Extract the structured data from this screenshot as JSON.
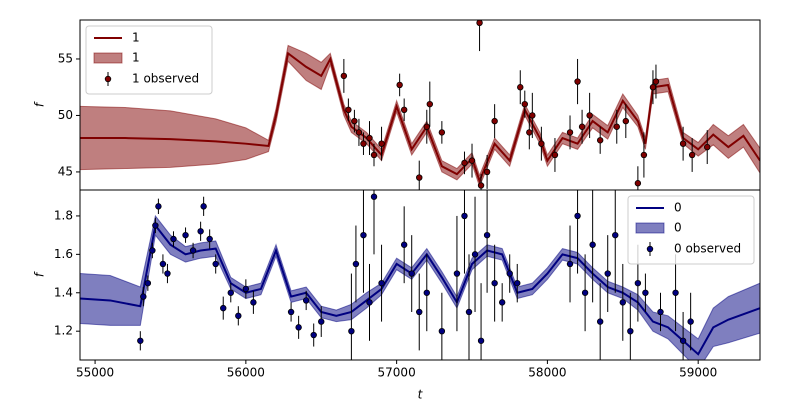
{
  "chart_data": [
    {
      "type": "line",
      "xlabel": "t",
      "ylabel": "f",
      "legend": "upper left",
      "xlim": [
        54900,
        59410
      ],
      "ylim": [
        43.4,
        58.45
      ],
      "yticks": [
        45,
        50,
        55
      ],
      "line": {
        "name": "1",
        "color": "#800000",
        "x": [
          54900,
          55200,
          55500,
          55800,
          56000,
          56150,
          56200,
          56280,
          56400,
          56500,
          56560,
          56650,
          56700,
          56800,
          56900,
          57000,
          57100,
          57200,
          57300,
          57400,
          57500,
          57550,
          57650,
          57750,
          57850,
          57950,
          58000,
          58100,
          58200,
          58300,
          58400,
          58500,
          58600,
          58650,
          58700,
          58800,
          58900,
          59000,
          59100,
          59200,
          59300,
          59410
        ],
        "values": [
          48.0,
          48.0,
          47.9,
          47.7,
          47.5,
          47.3,
          50.0,
          55.5,
          54.3,
          53.5,
          55.0,
          50.5,
          49.0,
          48.0,
          46.5,
          50.8,
          47.0,
          49.0,
          45.5,
          44.8,
          46.2,
          44.2,
          47.5,
          46.0,
          50.5,
          48.0,
          46.0,
          48.0,
          47.5,
          49.5,
          48.5,
          51.3,
          49.5,
          47.5,
          52.5,
          52.7,
          48.0,
          47.0,
          48.3,
          47.2,
          48.2,
          46.0
        ]
      },
      "band": {
        "name": "1",
        "color": "#800000",
        "x": [
          54900,
          55200,
          55500,
          55800,
          56000,
          56150,
          56200,
          56280,
          56400,
          56500,
          56560,
          56650,
          56700,
          56800,
          56900,
          57000,
          57100,
          57200,
          57300,
          57400,
          57500,
          57550,
          57650,
          57750,
          57850,
          57950,
          58000,
          58100,
          58200,
          58300,
          58400,
          58500,
          58600,
          58650,
          58700,
          58800,
          58900,
          59000,
          59100,
          59200,
          59300,
          59410
        ],
        "lower": [
          45.2,
          45.3,
          45.4,
          45.7,
          46.1,
          46.8,
          49.4,
          54.8,
          53.1,
          52.3,
          54.5,
          50.0,
          48.5,
          47.5,
          46.0,
          50.3,
          46.5,
          48.5,
          45.0,
          44.3,
          45.7,
          43.7,
          47.0,
          45.5,
          50.0,
          47.5,
          45.5,
          47.5,
          47.0,
          48.9,
          47.9,
          50.7,
          49.0,
          47.0,
          51.9,
          52.1,
          47.5,
          46.4,
          47.4,
          46.2,
          47.2,
          44.9
        ],
        "upper": [
          50.8,
          50.7,
          50.4,
          49.7,
          48.9,
          47.8,
          50.6,
          56.2,
          55.5,
          54.7,
          55.5,
          51.0,
          49.5,
          48.5,
          47.0,
          51.3,
          47.5,
          49.5,
          46.0,
          45.3,
          46.7,
          44.7,
          48.0,
          46.5,
          51.0,
          48.5,
          46.5,
          48.5,
          48.0,
          50.1,
          49.1,
          51.9,
          50.0,
          48.0,
          53.1,
          53.3,
          48.5,
          47.6,
          49.2,
          48.2,
          49.2,
          47.1
        ]
      },
      "observed": {
        "name": "1 observed",
        "color": "#800000",
        "x": [
          56650,
          56680,
          56720,
          56750,
          56780,
          56820,
          56850,
          56900,
          57020,
          57050,
          57150,
          57200,
          57220,
          57300,
          57450,
          57500,
          57550,
          57560,
          57600,
          57650,
          57820,
          57850,
          57880,
          57900,
          57960,
          58050,
          58150,
          58200,
          58230,
          58280,
          58350,
          58460,
          58520,
          58600,
          58640,
          58700,
          58720,
          58900,
          58960,
          59060
        ],
        "values": [
          53.5,
          50.5,
          49.5,
          48.5,
          47.5,
          48,
          46.5,
          47.5,
          52.7,
          50.5,
          44.5,
          49,
          51,
          48.5,
          45.8,
          46,
          58.2,
          43.8,
          45,
          49.5,
          52.5,
          51,
          48.5,
          50,
          47.5,
          46.5,
          48.5,
          53,
          49,
          50,
          47.8,
          49,
          49.5,
          44,
          46.5,
          52.5,
          53,
          47.5,
          46.5,
          47.2
        ],
        "errors": [
          1.5,
          1,
          1,
          1.2,
          1,
          1.5,
          1,
          1.5,
          1,
          1,
          1.5,
          1.5,
          2,
          1,
          1,
          1.5,
          2.5,
          1,
          1.5,
          1.5,
          1.5,
          1.2,
          1.5,
          2,
          1.5,
          1.5,
          1.5,
          2,
          1.5,
          2,
          1.2,
          1.5,
          1.5,
          1.5,
          2,
          1.5,
          1.5,
          1.5,
          1.5,
          1.5
        ]
      }
    },
    {
      "type": "line",
      "xlabel": "t",
      "ylabel": "f",
      "legend": "upper right",
      "xlim": [
        54900,
        59410
      ],
      "xticks": [
        55000,
        56000,
        57000,
        58000,
        59000
      ],
      "ylim": [
        1.05,
        1.935
      ],
      "yticks": [
        1.2,
        1.4,
        1.6,
        1.8
      ],
      "line": {
        "name": "0",
        "color": "#000080",
        "x": [
          54900,
          55100,
          55300,
          55400,
          55500,
          55600,
          55700,
          55800,
          55900,
          56000,
          56100,
          56200,
          56300,
          56400,
          56500,
          56600,
          56700,
          56800,
          56900,
          57000,
          57100,
          57200,
          57300,
          57400,
          57500,
          57600,
          57700,
          57800,
          57900,
          58000,
          58100,
          58200,
          58300,
          58400,
          58500,
          58600,
          58700,
          58800,
          58900,
          59000,
          59100,
          59200,
          59410
        ],
        "values": [
          1.37,
          1.36,
          1.33,
          1.75,
          1.65,
          1.6,
          1.62,
          1.63,
          1.45,
          1.4,
          1.42,
          1.62,
          1.38,
          1.4,
          1.3,
          1.28,
          1.3,
          1.36,
          1.42,
          1.55,
          1.5,
          1.6,
          1.48,
          1.35,
          1.55,
          1.62,
          1.6,
          1.4,
          1.42,
          1.5,
          1.6,
          1.58,
          1.5,
          1.43,
          1.4,
          1.35,
          1.25,
          1.22,
          1.15,
          1.08,
          1.22,
          1.26,
          1.32
        ]
      },
      "band": {
        "name": "0",
        "color": "#000080",
        "x": [
          54900,
          55100,
          55300,
          55400,
          55500,
          55600,
          55700,
          55800,
          55900,
          56000,
          56100,
          56200,
          56300,
          56400,
          56500,
          56600,
          56700,
          56800,
          56900,
          57000,
          57100,
          57200,
          57300,
          57400,
          57500,
          57600,
          57700,
          57800,
          57900,
          58000,
          58100,
          58200,
          58300,
          58400,
          58500,
          58600,
          58700,
          58800,
          58900,
          59000,
          59100,
          59200,
          59410
        ],
        "lower": [
          1.24,
          1.23,
          1.23,
          1.7,
          1.6,
          1.56,
          1.58,
          1.59,
          1.42,
          1.37,
          1.39,
          1.59,
          1.35,
          1.37,
          1.27,
          1.25,
          1.26,
          1.32,
          1.39,
          1.52,
          1.47,
          1.57,
          1.45,
          1.32,
          1.52,
          1.59,
          1.57,
          1.37,
          1.39,
          1.47,
          1.57,
          1.55,
          1.47,
          1.4,
          1.37,
          1.31,
          1.2,
          1.16,
          1.08,
          1.0,
          1.12,
          1.14,
          1.19
        ],
        "upper": [
          1.5,
          1.49,
          1.43,
          1.8,
          1.7,
          1.64,
          1.66,
          1.67,
          1.48,
          1.43,
          1.45,
          1.65,
          1.41,
          1.43,
          1.33,
          1.31,
          1.34,
          1.4,
          1.45,
          1.58,
          1.53,
          1.63,
          1.51,
          1.38,
          1.58,
          1.65,
          1.63,
          1.43,
          1.45,
          1.53,
          1.63,
          1.61,
          1.53,
          1.46,
          1.43,
          1.39,
          1.3,
          1.28,
          1.22,
          1.16,
          1.32,
          1.38,
          1.45
        ]
      },
      "observed": {
        "name": "0 observed",
        "color": "#000080",
        "x": [
          55300,
          55320,
          55350,
          55380,
          55400,
          55420,
          55450,
          55480,
          55520,
          55600,
          55650,
          55700,
          55720,
          55760,
          55800,
          55850,
          55900,
          55950,
          56000,
          56050,
          56300,
          56350,
          56400,
          56450,
          56500,
          56700,
          56730,
          56780,
          56820,
          56850,
          56900,
          57050,
          57100,
          57150,
          57200,
          57300,
          57400,
          57450,
          57480,
          57520,
          57560,
          57600,
          57650,
          57700,
          57750,
          57800,
          58150,
          58200,
          58250,
          58300,
          58350,
          58400,
          58450,
          58500,
          58550,
          58600,
          58650,
          58750,
          58850,
          58900,
          58950
        ],
        "values": [
          1.15,
          1.38,
          1.45,
          1.62,
          1.75,
          1.85,
          1.55,
          1.5,
          1.68,
          1.7,
          1.62,
          1.72,
          1.85,
          1.68,
          1.55,
          1.32,
          1.4,
          1.28,
          1.42,
          1.35,
          1.3,
          1.22,
          1.36,
          1.18,
          1.25,
          1.2,
          1.55,
          1.7,
          1.35,
          1.9,
          1.45,
          1.65,
          1.5,
          1.3,
          1.4,
          1.2,
          1.5,
          1.8,
          1.3,
          1.6,
          1.15,
          1.7,
          1.45,
          1.35,
          1.5,
          1.45,
          1.55,
          1.8,
          1.4,
          1.65,
          1.25,
          1.5,
          1.7,
          1.35,
          1.2,
          1.45,
          1.4,
          1.3,
          1.4,
          1.15,
          1.25
        ],
        "errors": [
          0.05,
          0.05,
          0.04,
          0.04,
          0.04,
          0.04,
          0.05,
          0.05,
          0.04,
          0.04,
          0.04,
          0.05,
          0.05,
          0.05,
          0.05,
          0.06,
          0.05,
          0.05,
          0.05,
          0.06,
          0.05,
          0.06,
          0.05,
          0.06,
          0.08,
          0.3,
          0.2,
          0.3,
          0.2,
          0.3,
          0.2,
          0.2,
          0.2,
          0.2,
          0.2,
          0.2,
          0.3,
          0.3,
          0.3,
          0.3,
          0.3,
          0.3,
          0.2,
          0.1,
          0.1,
          0.1,
          0.2,
          0.3,
          0.2,
          0.3,
          0.2,
          0.2,
          0.3,
          0.2,
          0.2,
          0.2,
          0.1,
          0.1,
          0.2,
          0.15,
          0.15
        ]
      }
    }
  ]
}
